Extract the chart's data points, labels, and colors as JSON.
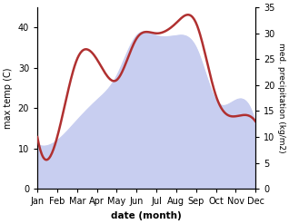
{
  "months": [
    "Jan",
    "Feb",
    "Mar",
    "Apr",
    "May",
    "Jun",
    "Jul",
    "Aug",
    "Sep",
    "Oct",
    "Nov",
    "Dec"
  ],
  "temp": [
    11,
    12,
    17,
    22,
    28,
    38,
    38,
    38,
    35,
    22,
    22,
    16
  ],
  "precip": [
    10,
    10,
    25,
    25,
    21,
    29,
    30,
    32,
    32,
    18,
    14,
    13
  ],
  "temp_fill_color": "#c8cef0",
  "temp_line_color": "#c8cef0",
  "precip_color": "#b03030",
  "ylabel_left": "max temp (C)",
  "ylabel_right": "med. precipitation (kg/m2)",
  "xlabel": "date (month)",
  "ylim_left": [
    0,
    45
  ],
  "ylim_right": [
    0,
    35
  ],
  "yticks_left": [
    0,
    10,
    20,
    30,
    40
  ],
  "yticks_right": [
    0,
    5,
    10,
    15,
    20,
    25,
    30,
    35
  ],
  "figsize": [
    3.18,
    2.47
  ],
  "dpi": 100
}
